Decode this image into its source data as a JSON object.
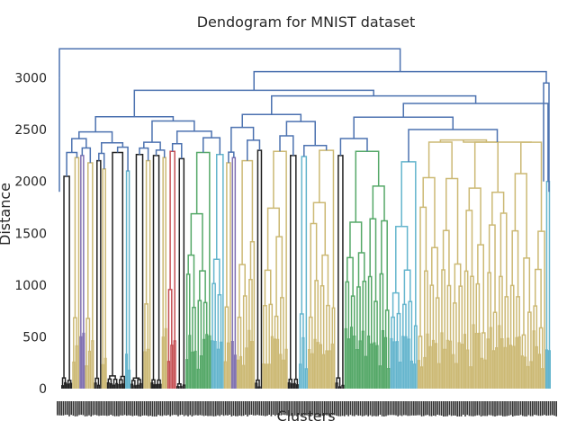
{
  "chart_data": {
    "type": "dendrogram",
    "title": "Dendogram for MNIST dataset",
    "xlabel": "Clusters",
    "ylabel": "Distance",
    "ylim": [
      0,
      3300
    ],
    "yticks": [
      0,
      500,
      1000,
      1500,
      2000,
      2500,
      3000
    ],
    "grid": false,
    "colors": {
      "link_above_threshold": "#4c72b0",
      "cluster_colors": [
        "#55a868",
        "#c44e52",
        "#8172b2",
        "#ccb974",
        "#64b5cd",
        "#222222"
      ]
    },
    "top_merges": [
      {
        "left_height": 3000,
        "right_height": 2950,
        "merge_height": 3280
      },
      {
        "left_height": 2800,
        "right_height": 2960,
        "merge_height": 3060
      }
    ],
    "clusters": [
      {
        "color": "#222222",
        "top": 2050
      },
      {
        "color": "#ccb974",
        "top": 2230
      },
      {
        "color": "#8172b2",
        "top": 2250
      },
      {
        "color": "#ccb974",
        "top": 2180
      },
      {
        "color": "#222222",
        "top": 2200
      },
      {
        "color": "#ccb974",
        "top": 2120
      },
      {
        "color": "#222222",
        "top": 2280
      },
      {
        "color": "#64b5cd",
        "top": 2100
      },
      {
        "color": "#222222",
        "top": 2260
      },
      {
        "color": "#ccb974",
        "top": 2200
      },
      {
        "color": "#222222",
        "top": 2250
      },
      {
        "color": "#ccb974",
        "top": 2230
      },
      {
        "color": "#c44e52",
        "top": 2290
      },
      {
        "color": "#222222",
        "top": 2220
      },
      {
        "color": "#55a868",
        "top": 2280
      },
      {
        "color": "#64b5cd",
        "top": 2260
      },
      {
        "color": "#ccb974",
        "top": 2180
      },
      {
        "color": "#8172b2",
        "top": 2230
      },
      {
        "color": "#ccb974",
        "top": 2200
      },
      {
        "color": "#222222",
        "top": 2300
      },
      {
        "color": "#ccb974",
        "top": 2290
      },
      {
        "color": "#222222",
        "top": 2250
      },
      {
        "color": "#64b5cd",
        "top": 2240
      },
      {
        "color": "#ccb974",
        "top": 2300
      },
      {
        "color": "#222222",
        "top": 2250
      },
      {
        "color": "#55a868",
        "top": 2290
      },
      {
        "color": "#64b5cd",
        "top": 2190
      },
      {
        "color": "#ccb974",
        "top": 2380
      },
      {
        "color": "#64b5cd",
        "top": 2000
      }
    ]
  }
}
